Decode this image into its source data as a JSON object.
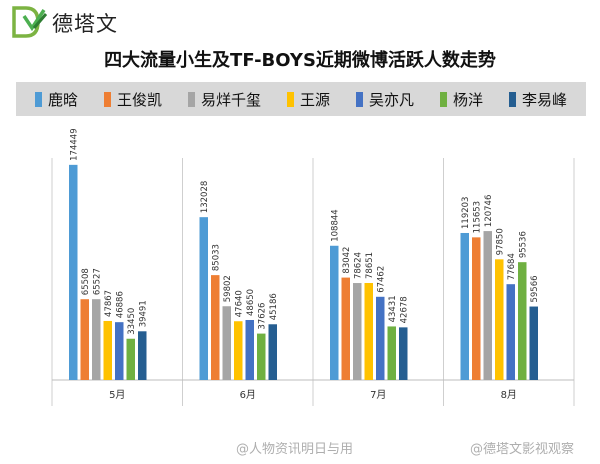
{
  "brand": {
    "name": "德塔文"
  },
  "watermarks": [
    "@人物资讯明日与用",
    "@德塔文影视观察"
  ],
  "chart_data": {
    "type": "bar",
    "title": "四大流量小生及TF-BOYS近期微博活跃人数走势",
    "categories": [
      "5月",
      "6月",
      "7月",
      "8月"
    ],
    "ylim": [
      0,
      180000
    ],
    "grid": false,
    "legend_position": "top",
    "series": [
      {
        "name": "鹿晗",
        "color": "#4E9BD5",
        "values": [
          174449,
          132028,
          108844,
          119203
        ]
      },
      {
        "name": "王俊凯",
        "color": "#EE7E33",
        "values": [
          65508,
          85033,
          83042,
          115653
        ]
      },
      {
        "name": "易烊千玺",
        "color": "#A5A5A5",
        "values": [
          65527,
          59802,
          78624,
          120746
        ]
      },
      {
        "name": "王源",
        "color": "#FFC200",
        "values": [
          47867,
          47640,
          78651,
          97850
        ]
      },
      {
        "name": "吴亦凡",
        "color": "#4472C4",
        "values": [
          46886,
          48650,
          67462,
          77684
        ]
      },
      {
        "name": "杨洋",
        "color": "#6FB041",
        "values": [
          33450,
          37626,
          43431,
          95536
        ]
      },
      {
        "name": "李易峰",
        "color": "#255E91",
        "values": [
          39491,
          45186,
          42678,
          59566
        ]
      }
    ]
  }
}
